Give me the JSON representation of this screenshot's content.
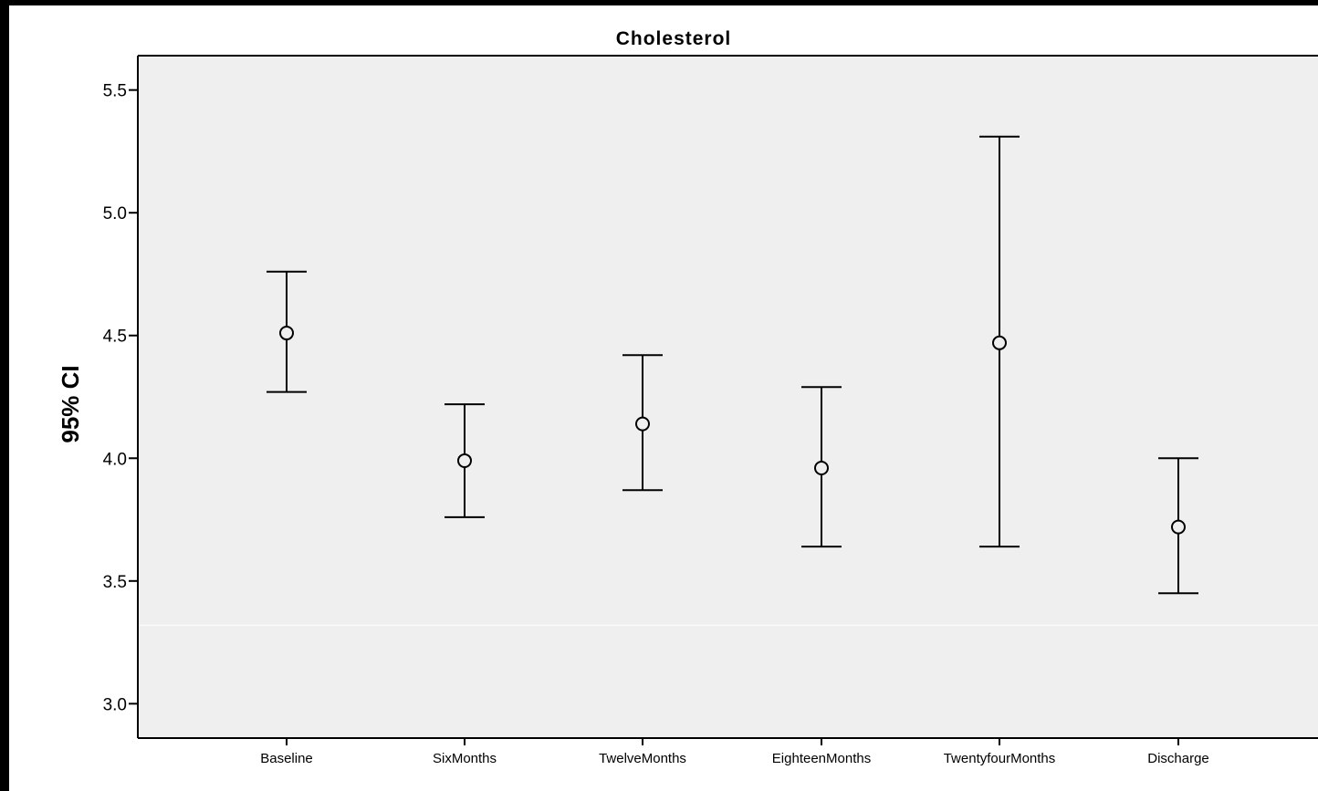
{
  "chart_data": {
    "type": "errorbar",
    "title": "Cholesterol",
    "ylabel": "95% CI",
    "xlabel": "",
    "ylim": [
      2.86,
      5.64
    ],
    "yticks": [
      3.0,
      3.5,
      4.0,
      4.5,
      5.0,
      5.5
    ],
    "ytick_labels": [
      "3.0",
      "3.5",
      "4.0",
      "4.5",
      "5.0",
      "5.5"
    ],
    "categories": [
      "Baseline",
      "SixMonths",
      "TwelveMonths",
      "EighteenMonths",
      "TwentyfourMonths",
      "Discharge"
    ],
    "series": [
      {
        "mean": [
          4.51,
          3.99,
          4.14,
          3.96,
          4.47,
          3.72
        ],
        "lower": [
          4.27,
          3.76,
          3.87,
          3.64,
          3.64,
          3.45
        ],
        "upper": [
          4.76,
          4.22,
          4.42,
          4.29,
          5.31,
          4.0
        ]
      }
    ],
    "grid": false,
    "plot_background": "#efefef",
    "band_line_value": 3.32,
    "band_line_color": "#ffffff",
    "line_color": "#000000"
  }
}
